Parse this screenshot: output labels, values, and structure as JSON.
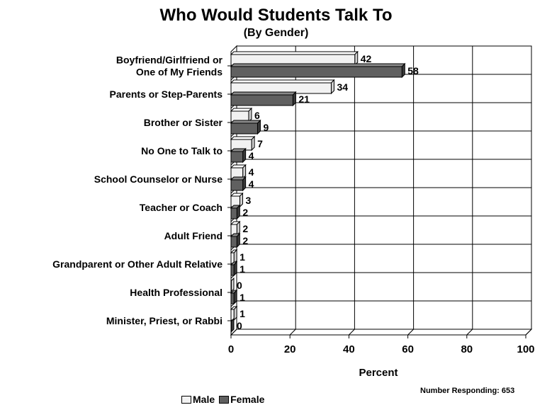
{
  "chart_data": {
    "type": "bar",
    "orientation": "horizontal",
    "title": "Who Would Students Talk To",
    "subtitle": "(By Gender)",
    "xlabel": "Percent",
    "ylabel": "",
    "xlim": [
      0,
      100
    ],
    "xticks": [
      "0",
      "20",
      "40",
      "60",
      "80",
      "100"
    ],
    "grid": true,
    "legend_position": "bottom",
    "categories": [
      [
        "Boyfriend/Girlfriend or",
        "One of My Friends"
      ],
      [
        "Parents or Step-Parents"
      ],
      [
        "Brother or Sister"
      ],
      [
        "No One to Talk to"
      ],
      [
        "School Counselor or Nurse"
      ],
      [
        "Teacher or Coach"
      ],
      [
        "Adult Friend"
      ],
      [
        "Grandparent or Other Adult Relative"
      ],
      [
        "Health Professional"
      ],
      [
        "Minister, Priest, or Rabbi"
      ]
    ],
    "series": [
      {
        "name": "Male",
        "color": "#f2f2f2",
        "values": [
          42,
          34,
          6,
          7,
          4,
          3,
          2,
          1,
          0,
          1
        ]
      },
      {
        "name": "Female",
        "color": "#606060",
        "values": [
          58,
          21,
          9,
          4,
          4,
          2,
          2,
          1,
          1,
          0
        ]
      }
    ],
    "note": "Number Responding:  653"
  }
}
